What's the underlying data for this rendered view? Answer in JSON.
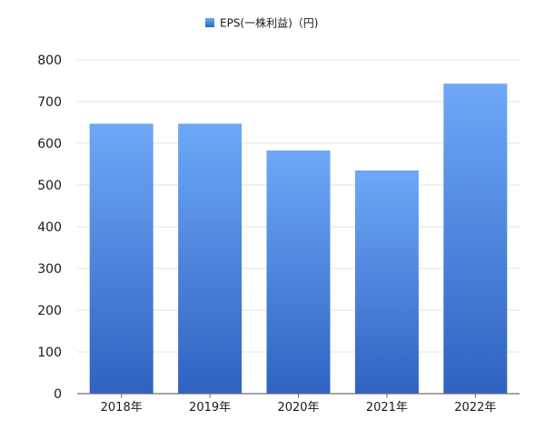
{
  "chart_data": {
    "type": "bar",
    "categories": [
      "2018年",
      "2019年",
      "2020年",
      "2021年",
      "2022年"
    ],
    "series": [
      {
        "name": "EPS(一株利益)（円)",
        "values": [
          647,
          647,
          583,
          535,
          743
        ],
        "color": "#4a86e0"
      }
    ],
    "ylim": [
      0,
      800
    ],
    "yticks": [
      0,
      100,
      200,
      300,
      400,
      500,
      600,
      700,
      800
    ],
    "grid": true,
    "legend": "top-center"
  }
}
